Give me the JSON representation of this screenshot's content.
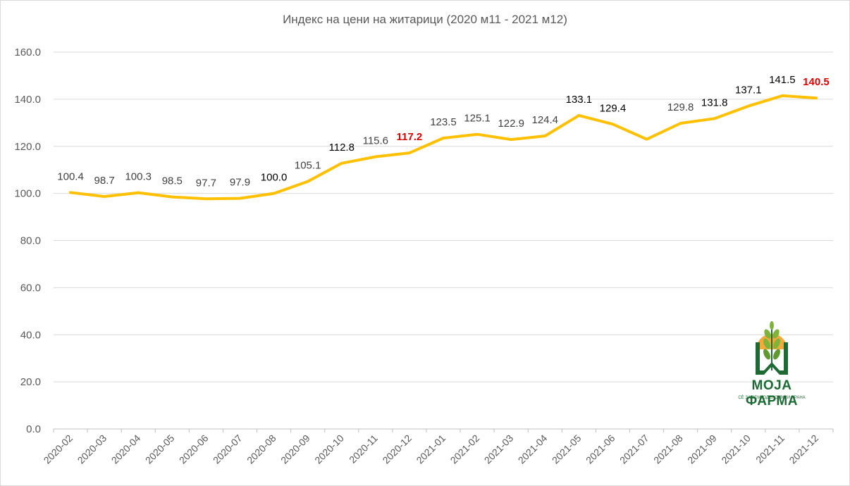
{
  "chart_data": {
    "type": "line",
    "title": "Индекс на цени на житарици (2020 м11 - 2021 м12)",
    "xlabel": "",
    "ylabel": "",
    "ylim": [
      0,
      160
    ],
    "yticks": [
      "0.0",
      "20.0",
      "40.0",
      "60.0",
      "80.0",
      "100.0",
      "120.0",
      "140.0",
      "160.0"
    ],
    "grid": true,
    "legend": "none",
    "categories": [
      "2020-02",
      "2020-03",
      "2020-04",
      "2020-05",
      "2020-06",
      "2020-07",
      "2020-08",
      "2020-09",
      "2020-10",
      "2020-11",
      "2020-12",
      "2021-01",
      "2021-02",
      "2021-03",
      "2021-04",
      "2021-05",
      "2021-06",
      "2021-07",
      "2021-08",
      "2021-09",
      "2021-10",
      "2021-11",
      "2021-12"
    ],
    "series": [
      {
        "color": "#ffc000",
        "values": [
          100.4,
          98.7,
          100.3,
          98.5,
          97.7,
          97.9,
          100.0,
          105.1,
          112.8,
          115.6,
          117.2,
          123.5,
          125.1,
          122.9,
          124.4,
          133.1,
          129.4,
          123.0,
          129.8,
          131.8,
          137.1,
          141.5,
          140.5
        ]
      }
    ],
    "data_labels": [
      "100.4",
      "98.7",
      "100.3",
      "98.5",
      "97.7",
      "97.9",
      "100.0",
      "105.1",
      "112.8",
      "115.6",
      "117.2",
      "123.5",
      "125.1",
      "122.9",
      "124.4",
      "133.1",
      "129.4",
      "",
      "129.8",
      "131.8",
      "137.1",
      "141.5",
      "140.5"
    ],
    "highlighted_labels": [
      "2020-12",
      "2021-12"
    ],
    "highlight_color": "#e00000"
  },
  "logo": {
    "name": "МОЈА ФАРМА",
    "tagline": "СÈ ЗА ЗЕМЈОДЕЛСТВО И ХРАНА",
    "colors": {
      "green": "#1e6a34",
      "sun": "#f4a93b"
    }
  }
}
